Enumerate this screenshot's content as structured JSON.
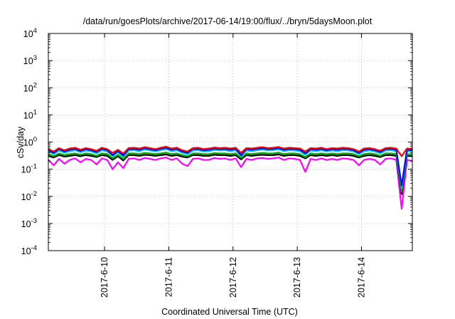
{
  "chart_data": {
    "type": "line",
    "title": "/data/run/goesPlots/archive/2017-06-14/19:00/flux/../bryn/5daysMoon.plot",
    "xlabel": "Coordinated Universal Time (UTC)",
    "ylabel": "cSv/day",
    "yscale": "log",
    "ylim": [
      0.0001,
      10000
    ],
    "xlim": [
      "2017-06-09 03:00",
      "2017-06-14 19:00"
    ],
    "grid": true,
    "y_ticks": [
      {
        "value": 0.0001,
        "base": "10",
        "exp": "-4"
      },
      {
        "value": 0.001,
        "base": "10",
        "exp": "-3"
      },
      {
        "value": 0.01,
        "base": "10",
        "exp": "-2"
      },
      {
        "value": 0.1,
        "base": "10",
        "exp": "-1"
      },
      {
        "value": 1,
        "base": "10",
        "exp": "0"
      },
      {
        "value": 10,
        "base": "10",
        "exp": "1"
      },
      {
        "value": 100,
        "base": "10",
        "exp": "2"
      },
      {
        "value": 1000,
        "base": "10",
        "exp": "3"
      },
      {
        "value": 10000,
        "base": "10",
        "exp": "4"
      }
    ],
    "x_ticks": [
      {
        "date": "2017-06-10",
        "label": "2017-6-10"
      },
      {
        "date": "2017-06-11",
        "label": "2017-6-11"
      },
      {
        "date": "2017-06-12",
        "label": "2017-6-12"
      },
      {
        "date": "2017-06-13",
        "label": "2017-6-13"
      },
      {
        "date": "2017-06-14",
        "label": "2017-6-14"
      }
    ],
    "x": [
      "2017-06-09 03:00",
      "2017-06-09 05:00",
      "2017-06-09 07:00",
      "2017-06-09 09:00",
      "2017-06-09 11:00",
      "2017-06-09 13:00",
      "2017-06-09 15:00",
      "2017-06-09 17:00",
      "2017-06-09 19:00",
      "2017-06-09 21:00",
      "2017-06-09 23:00",
      "2017-06-10 01:00",
      "2017-06-10 03:00",
      "2017-06-10 05:00",
      "2017-06-10 07:00",
      "2017-06-10 09:00",
      "2017-06-10 11:00",
      "2017-06-10 13:00",
      "2017-06-10 15:00",
      "2017-06-10 17:00",
      "2017-06-10 19:00",
      "2017-06-10 21:00",
      "2017-06-10 23:00",
      "2017-06-11 01:00",
      "2017-06-11 03:00",
      "2017-06-11 05:00",
      "2017-06-11 07:00",
      "2017-06-11 09:00",
      "2017-06-11 11:00",
      "2017-06-11 13:00",
      "2017-06-11 15:00",
      "2017-06-11 17:00",
      "2017-06-11 19:00",
      "2017-06-11 21:00",
      "2017-06-11 23:00",
      "2017-06-12 01:00",
      "2017-06-12 03:00",
      "2017-06-12 05:00",
      "2017-06-12 07:00",
      "2017-06-12 09:00",
      "2017-06-12 11:00",
      "2017-06-12 13:00",
      "2017-06-12 15:00",
      "2017-06-12 17:00",
      "2017-06-12 19:00",
      "2017-06-12 21:00",
      "2017-06-12 23:00",
      "2017-06-13 01:00",
      "2017-06-13 03:00",
      "2017-06-13 05:00",
      "2017-06-13 07:00",
      "2017-06-13 09:00",
      "2017-06-13 11:00",
      "2017-06-13 13:00",
      "2017-06-13 15:00",
      "2017-06-13 17:00",
      "2017-06-13 19:00",
      "2017-06-13 21:00",
      "2017-06-13 23:00",
      "2017-06-14 01:00",
      "2017-06-14 03:00",
      "2017-06-14 05:00",
      "2017-06-14 07:00",
      "2017-06-14 09:00",
      "2017-06-14 11:00",
      "2017-06-14 13:00",
      "2017-06-14 15:00",
      "2017-06-14 17:00",
      "2017-06-14 19:00"
    ],
    "series": [
      {
        "color": "#ff0000",
        "values": [
          0.55,
          0.45,
          0.6,
          0.5,
          0.58,
          0.62,
          0.52,
          0.6,
          0.55,
          0.48,
          0.62,
          0.55,
          0.4,
          0.52,
          0.38,
          0.6,
          0.62,
          0.58,
          0.65,
          0.6,
          0.55,
          0.62,
          0.68,
          0.58,
          0.62,
          0.5,
          0.45,
          0.6,
          0.62,
          0.55,
          0.58,
          0.63,
          0.6,
          0.62,
          0.58,
          0.62,
          0.4,
          0.6,
          0.58,
          0.62,
          0.65,
          0.6,
          0.62,
          0.66,
          0.58,
          0.62,
          0.6,
          0.58,
          0.45,
          0.6,
          0.58,
          0.62,
          0.55,
          0.6,
          0.58,
          0.62,
          0.6,
          0.55,
          0.45,
          0.58,
          0.6,
          0.55,
          0.48,
          0.6,
          0.62,
          0.58,
          0.3,
          0.58,
          0.55
        ]
      },
      {
        "color": "#0000ff",
        "values": [
          0.5,
          0.4,
          0.55,
          0.45,
          0.52,
          0.56,
          0.47,
          0.55,
          0.5,
          0.43,
          0.56,
          0.5,
          0.33,
          0.47,
          0.32,
          0.55,
          0.56,
          0.52,
          0.59,
          0.55,
          0.5,
          0.56,
          0.62,
          0.52,
          0.56,
          0.45,
          0.4,
          0.55,
          0.56,
          0.5,
          0.52,
          0.57,
          0.55,
          0.56,
          0.52,
          0.56,
          0.33,
          0.55,
          0.52,
          0.56,
          0.59,
          0.55,
          0.56,
          0.6,
          0.52,
          0.56,
          0.55,
          0.52,
          0.38,
          0.55,
          0.52,
          0.56,
          0.5,
          0.55,
          0.52,
          0.56,
          0.55,
          0.5,
          0.4,
          0.52,
          0.55,
          0.5,
          0.43,
          0.55,
          0.56,
          0.52,
          0.025,
          0.52,
          0.5
        ]
      },
      {
        "color": "#00cccc",
        "values": [
          0.45,
          0.36,
          0.49,
          0.4,
          0.46,
          0.5,
          0.42,
          0.49,
          0.45,
          0.38,
          0.5,
          0.45,
          0.3,
          0.42,
          0.29,
          0.49,
          0.5,
          0.46,
          0.53,
          0.49,
          0.45,
          0.5,
          0.55,
          0.46,
          0.5,
          0.4,
          0.36,
          0.49,
          0.5,
          0.45,
          0.46,
          0.51,
          0.49,
          0.5,
          0.46,
          0.5,
          0.3,
          0.49,
          0.46,
          0.5,
          0.53,
          0.49,
          0.5,
          0.54,
          0.46,
          0.5,
          0.49,
          0.46,
          0.34,
          0.49,
          0.46,
          0.5,
          0.45,
          0.49,
          0.46,
          0.5,
          0.49,
          0.45,
          0.36,
          0.46,
          0.49,
          0.45,
          0.38,
          0.49,
          0.5,
          0.46,
          0.02,
          0.46,
          0.45
        ]
      },
      {
        "color": "#00aa00",
        "values": [
          0.36,
          0.3,
          0.38,
          0.33,
          0.36,
          0.38,
          0.34,
          0.38,
          0.36,
          0.31,
          0.38,
          0.36,
          0.25,
          0.34,
          0.24,
          0.38,
          0.38,
          0.36,
          0.4,
          0.38,
          0.36,
          0.38,
          0.41,
          0.36,
          0.38,
          0.33,
          0.3,
          0.38,
          0.38,
          0.36,
          0.36,
          0.39,
          0.38,
          0.38,
          0.36,
          0.38,
          0.26,
          0.38,
          0.36,
          0.38,
          0.4,
          0.38,
          0.38,
          0.41,
          0.36,
          0.38,
          0.38,
          0.36,
          0.28,
          0.38,
          0.36,
          0.38,
          0.36,
          0.38,
          0.36,
          0.38,
          0.38,
          0.36,
          0.3,
          0.36,
          0.38,
          0.36,
          0.31,
          0.38,
          0.38,
          0.36,
          0.015,
          0.36,
          0.35
        ]
      },
      {
        "color": "#000000",
        "values": [
          0.31,
          0.27,
          0.33,
          0.29,
          0.31,
          0.33,
          0.3,
          0.33,
          0.31,
          0.28,
          0.33,
          0.31,
          0.22,
          0.3,
          0.21,
          0.33,
          0.33,
          0.31,
          0.34,
          0.33,
          0.31,
          0.33,
          0.35,
          0.31,
          0.33,
          0.29,
          0.27,
          0.33,
          0.33,
          0.31,
          0.31,
          0.34,
          0.33,
          0.33,
          0.31,
          0.33,
          0.23,
          0.33,
          0.31,
          0.33,
          0.34,
          0.33,
          0.33,
          0.35,
          0.31,
          0.33,
          0.33,
          0.31,
          0.25,
          0.33,
          0.31,
          0.33,
          0.31,
          0.33,
          0.31,
          0.33,
          0.33,
          0.31,
          0.27,
          0.31,
          0.33,
          0.31,
          0.28,
          0.33,
          0.33,
          0.31,
          0.012,
          0.31,
          0.3
        ]
      },
      {
        "color": "#ff00ff",
        "values": [
          0.22,
          0.14,
          0.24,
          0.16,
          0.22,
          0.25,
          0.18,
          0.24,
          0.22,
          0.15,
          0.25,
          0.22,
          0.1,
          0.18,
          0.11,
          0.24,
          0.25,
          0.22,
          0.26,
          0.24,
          0.22,
          0.25,
          0.27,
          0.22,
          0.25,
          0.16,
          0.13,
          0.24,
          0.25,
          0.22,
          0.22,
          0.26,
          0.24,
          0.25,
          0.22,
          0.25,
          0.12,
          0.24,
          0.22,
          0.25,
          0.26,
          0.24,
          0.25,
          0.27,
          0.22,
          0.25,
          0.24,
          0.22,
          0.08,
          0.24,
          0.22,
          0.25,
          0.22,
          0.24,
          0.22,
          0.25,
          0.24,
          0.22,
          0.14,
          0.22,
          0.24,
          0.22,
          0.15,
          0.24,
          0.25,
          0.22,
          0.0035,
          0.22,
          0.2
        ]
      }
    ]
  }
}
